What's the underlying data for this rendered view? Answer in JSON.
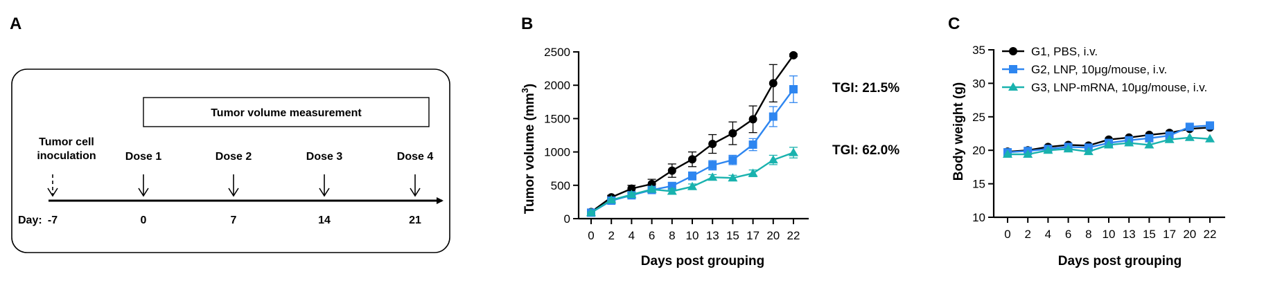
{
  "panels": {
    "a": "A",
    "b": "B",
    "c": "C"
  },
  "timeline": {
    "measurement_label": "Tumor volume measurement",
    "inoculation_label_line1": "Tumor cell",
    "inoculation_label_line2": "inoculation",
    "dose_labels": [
      "Dose 1",
      "Dose 2",
      "Dose 3",
      "Dose 4"
    ],
    "day_prefix": "Day:",
    "days": [
      "-7",
      "0",
      "7",
      "14",
      "21"
    ]
  },
  "chart_data": [
    {
      "type": "line",
      "panel": "B",
      "xlabel": "Days post grouping",
      "ylabel": "Tumor volume (mm",
      "ylabel_sup": "3",
      "ylabel_close": ")",
      "x": [
        0,
        2,
        4,
        6,
        8,
        10,
        13,
        15,
        17,
        20,
        22
      ],
      "ylim": [
        0,
        2500
      ],
      "yticks": [
        0,
        500,
        1000,
        1500,
        2000,
        2500
      ],
      "series": [
        {
          "values": [
            100,
            320,
            450,
            520,
            720,
            890,
            1120,
            1280,
            1490,
            2030,
            2450
          ],
          "errors": [
            20,
            30,
            50,
            70,
            100,
            110,
            140,
            170,
            200,
            280,
            20
          ],
          "color": "#000000",
          "marker": "circle"
        },
        {
          "values": [
            90,
            270,
            350,
            430,
            490,
            640,
            800,
            880,
            1110,
            1530,
            1940
          ],
          "errors": [
            10,
            20,
            30,
            40,
            50,
            60,
            70,
            70,
            90,
            150,
            200
          ],
          "color": "#2e86f0",
          "marker": "square"
        },
        {
          "values": [
            90,
            280,
            360,
            440,
            410,
            480,
            620,
            610,
            680,
            880,
            990
          ],
          "errors": [
            10,
            20,
            30,
            30,
            40,
            40,
            40,
            40,
            50,
            70,
            80
          ],
          "color": "#19b2ae",
          "marker": "triangle"
        }
      ],
      "annotations": [
        "TGI: 21.5%",
        "TGI: 62.0%"
      ],
      "annotation_values": [
        1940,
        990
      ]
    },
    {
      "type": "line",
      "panel": "C",
      "xlabel": "Days post grouping",
      "ylabel": "Body weight (g)",
      "x": [
        0,
        2,
        4,
        6,
        8,
        10,
        13,
        15,
        17,
        20,
        22
      ],
      "ylim": [
        10,
        35
      ],
      "yticks": [
        10,
        15,
        20,
        25,
        30,
        35
      ],
      "series": [
        {
          "name": "G1, PBS, i.v.",
          "values": [
            19.8,
            20.0,
            20.5,
            20.8,
            20.7,
            21.6,
            21.9,
            22.3,
            22.6,
            23.2,
            23.4
          ],
          "color": "#000000",
          "marker": "circle"
        },
        {
          "name": "G2, LNP, 10μg/mouse, i.v.",
          "values": [
            19.7,
            19.9,
            20.2,
            20.5,
            20.4,
            21.1,
            21.5,
            21.8,
            22.2,
            23.5,
            23.7
          ],
          "color": "#2e86f0",
          "marker": "square"
        },
        {
          "name": "G3, LNP-mRNA, 10μg/mouse, i.v.",
          "values": [
            19.4,
            19.4,
            20.0,
            20.2,
            19.8,
            20.8,
            21.1,
            20.8,
            21.6,
            21.9,
            21.7
          ],
          "color": "#19b2ae",
          "marker": "triangle"
        }
      ],
      "legend_position": "top-left"
    }
  ]
}
